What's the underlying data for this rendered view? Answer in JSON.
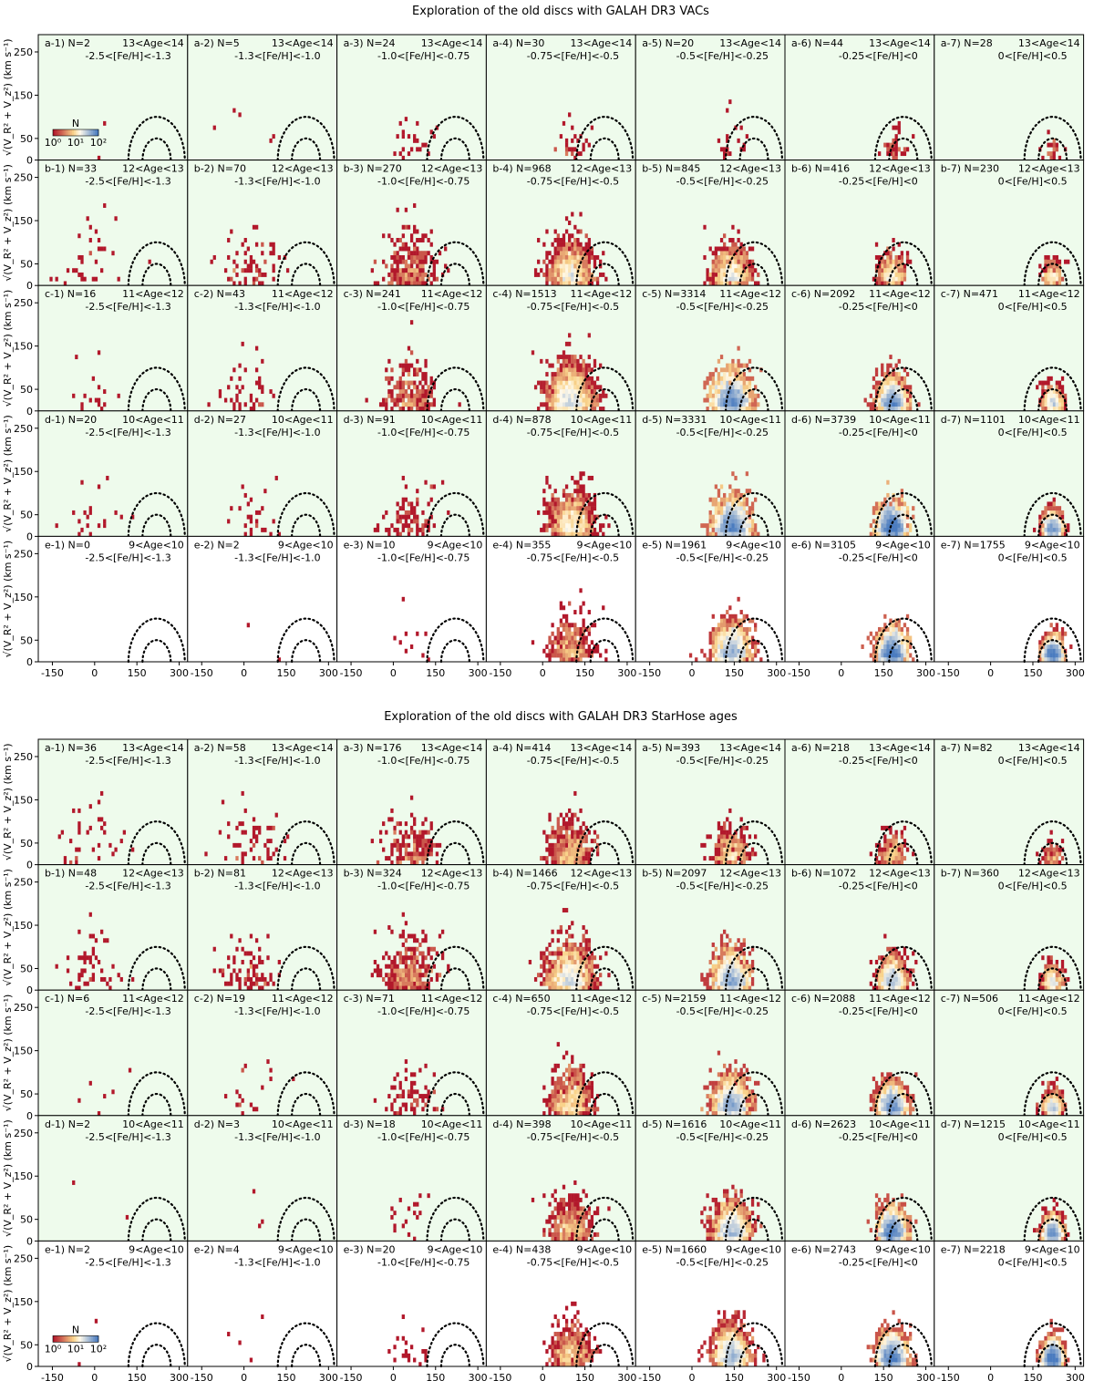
{
  "chart_data": [
    {
      "type": "heatmap",
      "title": "Exploration of the old discs with GALAH DR3 VACs",
      "ylabel": "√(V_R² + V_z²) (km s⁻¹)",
      "xlim": [
        -200,
        330
      ],
      "ylim": [
        0,
        290
      ],
      "x_ticks": [
        "-150",
        "0",
        "150",
        "300"
      ],
      "y_ticks": [
        "0",
        "50",
        "150",
        "250"
      ],
      "colorbar": {
        "label": "N",
        "ticks": [
          "10⁰",
          "10¹",
          "10²"
        ],
        "scale": "log"
      },
      "reference_arcs": {
        "center_x": 220,
        "radii": [
          50,
          100
        ],
        "style": "dotted"
      },
      "shading": "light green background on rows a–d",
      "rows": [
        "a",
        "b",
        "c",
        "d",
        "e"
      ],
      "row_age_labels": [
        "13<Age<14",
        "12<Age<13",
        "11<Age<12",
        "10<Age<11",
        "9<Age<10"
      ],
      "column_feh_labels": [
        "-2.5<[Fe/H]<-1.3",
        "-1.3<[Fe/H]<-1.0",
        "-1.0<[Fe/H]<-0.75",
        "-0.75<[Fe/H]<-0.5",
        "-0.5<[Fe/H]<-0.25",
        "-0.25<[Fe/H]<0",
        "0<[Fe/H]<0.5"
      ],
      "counts": [
        [
          2,
          5,
          24,
          30,
          20,
          44,
          28
        ],
        [
          33,
          70,
          270,
          968,
          845,
          416,
          230
        ],
        [
          16,
          43,
          241,
          1513,
          3314,
          2092,
          471
        ],
        [
          20,
          27,
          91,
          878,
          3331,
          3739,
          1101
        ],
        [
          0,
          2,
          10,
          355,
          1961,
          3105,
          1755
        ]
      ]
    },
    {
      "type": "heatmap",
      "title": "Exploration of the old discs with GALAH DR3 StarHose ages",
      "ylabel": "√(V_R² + V_z²) (km s⁻¹)",
      "xlim": [
        -200,
        330
      ],
      "ylim": [
        0,
        290
      ],
      "x_ticks": [
        "-150",
        "0",
        "150",
        "300"
      ],
      "y_ticks": [
        "0",
        "50",
        "150",
        "250"
      ],
      "colorbar": {
        "label": "N",
        "ticks": [
          "10⁰",
          "10¹",
          "10²"
        ],
        "scale": "log"
      },
      "reference_arcs": {
        "center_x": 220,
        "radii": [
          50,
          100
        ],
        "style": "dotted"
      },
      "shading": "light green background on rows a–d",
      "rows": [
        "a",
        "b",
        "c",
        "d",
        "e"
      ],
      "row_age_labels": [
        "13<Age<14",
        "12<Age<13",
        "11<Age<12",
        "10<Age<11",
        "9<Age<10"
      ],
      "column_feh_labels": [
        "-2.5<[Fe/H]<-1.3",
        "-1.3<[Fe/H]<-1.0",
        "-1.0<[Fe/H]<-0.75",
        "-0.75<[Fe/H]<-0.5",
        "-0.5<[Fe/H]<-0.25",
        "-0.25<[Fe/H]<0",
        "0<[Fe/H]<0.5"
      ],
      "counts": [
        [
          36,
          58,
          176,
          414,
          393,
          218,
          82
        ],
        [
          48,
          81,
          324,
          1466,
          2097,
          1072,
          360
        ],
        [
          6,
          19,
          71,
          650,
          2159,
          2088,
          506
        ],
        [
          2,
          3,
          18,
          398,
          1616,
          2623,
          1215
        ],
        [
          2,
          4,
          20,
          438,
          1660,
          2743,
          2218
        ]
      ]
    }
  ],
  "colors": {
    "shade": "#eefbec",
    "low": "#b2182b",
    "mid": "#f9d38a",
    "high": "#4a7bbf",
    "arc": "#000000"
  }
}
